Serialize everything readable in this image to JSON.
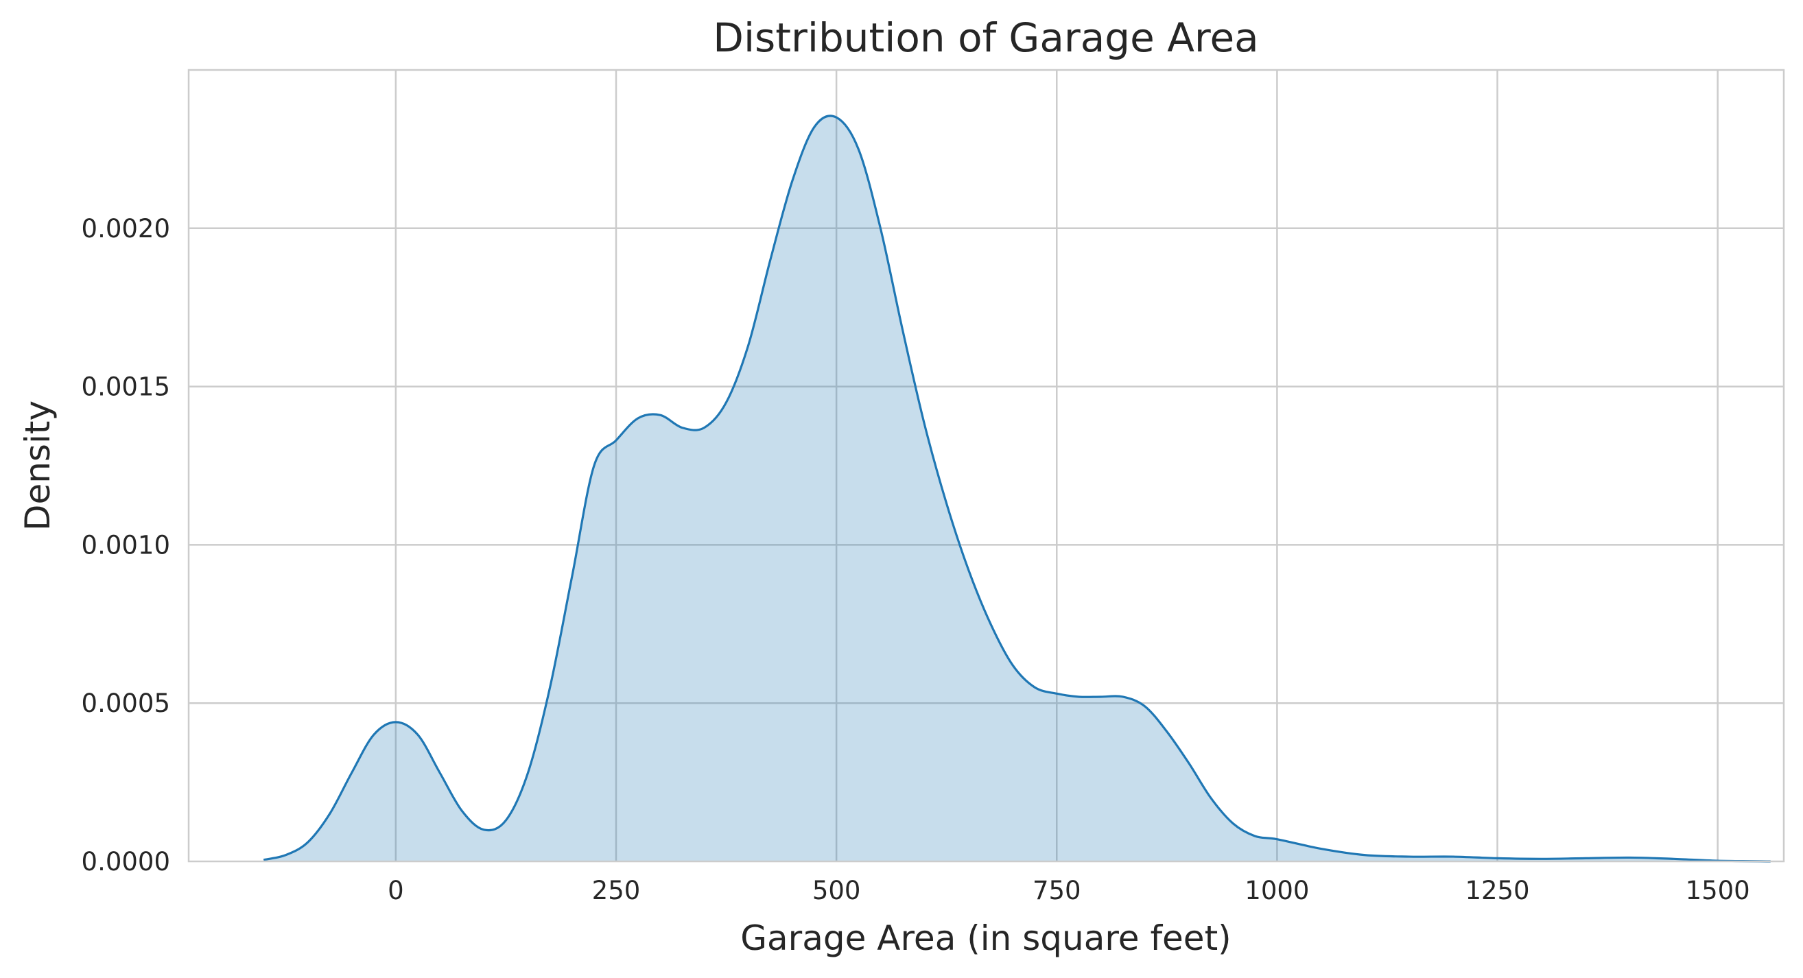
{
  "chart_data": {
    "type": "area",
    "title": "Distribution of Garage Area",
    "xlabel": "Garage Area (in square feet)",
    "ylabel": "Density",
    "xlim": [
      -235,
      1575
    ],
    "ylim": [
      0,
      0.0025
    ],
    "xticks": [
      0,
      250,
      500,
      750,
      1000,
      1250,
      1500
    ],
    "yticks": [
      0.0,
      0.0005,
      0.001,
      0.0015,
      0.002
    ],
    "ytick_labels": [
      "0.0000",
      "0.0005",
      "0.0010",
      "0.0015",
      "0.0020"
    ],
    "grid": true,
    "line_color": "#1f77b4",
    "fill_color": "#1f77b4",
    "fill_opacity": 0.25,
    "series": [
      {
        "x": [
          -150,
          -125,
          -100,
          -75,
          -50,
          -25,
          0,
          25,
          50,
          75,
          100,
          125,
          150,
          175,
          200,
          225,
          250,
          275,
          300,
          325,
          350,
          375,
          400,
          425,
          450,
          475,
          500,
          525,
          550,
          575,
          600,
          625,
          650,
          675,
          700,
          725,
          750,
          775,
          800,
          825,
          850,
          875,
          900,
          925,
          950,
          975,
          1000,
          1050,
          1100,
          1150,
          1200,
          1250,
          1300,
          1350,
          1400,
          1450,
          1500,
          1560
        ],
        "y": [
          5e-06,
          2e-05,
          6e-05,
          0.00015,
          0.00028,
          0.0004,
          0.00044,
          0.0004,
          0.00028,
          0.00016,
          0.0001,
          0.00013,
          0.00028,
          0.00055,
          0.0009,
          0.00125,
          0.00133,
          0.0014,
          0.00141,
          0.00137,
          0.00137,
          0.00145,
          0.00163,
          0.0019,
          0.00215,
          0.00232,
          0.00235,
          0.00225,
          0.002,
          0.00168,
          0.00138,
          0.00113,
          0.00092,
          0.00075,
          0.00062,
          0.00055,
          0.00053,
          0.00052,
          0.00052,
          0.00052,
          0.00049,
          0.00041,
          0.00031,
          0.0002,
          0.00012,
          8e-05,
          7e-05,
          4e-05,
          2e-05,
          1.5e-05,
          1.5e-05,
          1e-05,
          8e-06,
          1e-05,
          1.2e-05,
          8e-06,
          2e-06,
          0.0
        ]
      }
    ]
  }
}
